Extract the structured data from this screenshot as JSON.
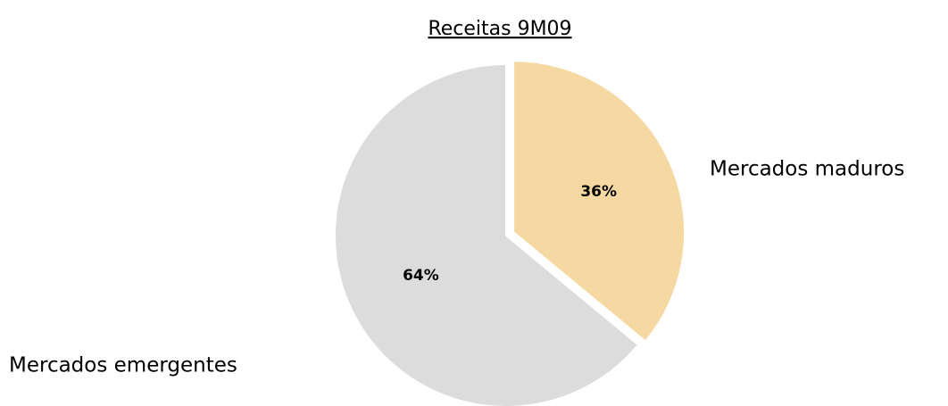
{
  "chart_data": {
    "type": "pie",
    "title": "Receitas 9M09",
    "categories": [
      "Mercados maduros",
      "Mercados emergentes"
    ],
    "values": [
      36,
      64
    ],
    "value_labels": [
      "36%",
      "64%"
    ],
    "colors": [
      "#f6d9a2",
      "#dcdcdc"
    ]
  }
}
